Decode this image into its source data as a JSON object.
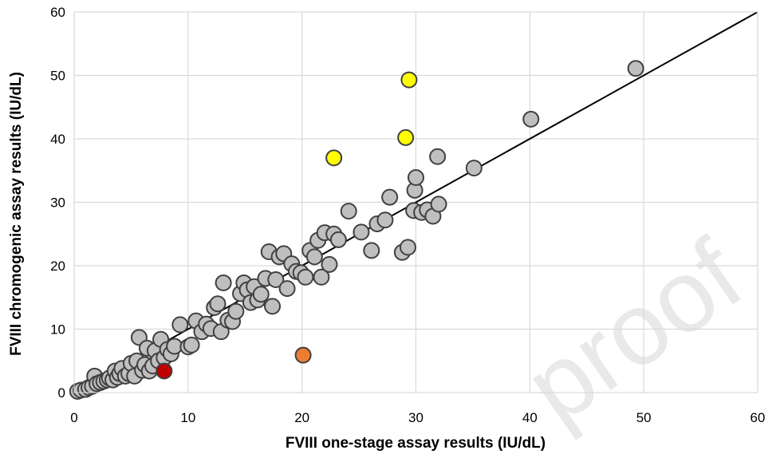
{
  "chart_data": {
    "type": "scatter",
    "title": "",
    "xlabel": "FVIII one-stage assay results (IU/dL)",
    "ylabel": "FVIII chromogenic assay results (IU/dL)",
    "xlim": [
      0,
      60
    ],
    "ylim": [
      0,
      60
    ],
    "x_ticks": [
      "0",
      "10",
      "20",
      "30",
      "40",
      "50",
      "60"
    ],
    "y_ticks": [
      "0",
      "10",
      "20",
      "30",
      "40",
      "50",
      "60"
    ],
    "grid": true,
    "legend": "none",
    "identity_line": {
      "from": [
        0,
        0
      ],
      "to": [
        60,
        60
      ],
      "color": "#000000"
    },
    "colors": {
      "gray": "#bfbfbf",
      "yellow": "#ffff00",
      "orange": "#ed7d31",
      "red": "#c00000",
      "marker_edge": "#404040",
      "grid": "#d9d9d9"
    },
    "series": [
      {
        "color": "gray",
        "points": [
          [
            0.3,
            0.2
          ],
          [
            0.6,
            0.4
          ],
          [
            1.0,
            0.5
          ],
          [
            1.3,
            0.8
          ],
          [
            1.6,
            1.0
          ],
          [
            1.8,
            2.6
          ],
          [
            2.0,
            1.4
          ],
          [
            2.3,
            1.6
          ],
          [
            2.6,
            1.8
          ],
          [
            2.9,
            2.0
          ],
          [
            3.1,
            2.3
          ],
          [
            3.4,
            2.0
          ],
          [
            3.6,
            3.4
          ],
          [
            3.8,
            2.4
          ],
          [
            4.0,
            3.0
          ],
          [
            4.2,
            3.8
          ],
          [
            4.5,
            2.6
          ],
          [
            4.8,
            3.0
          ],
          [
            5.0,
            4.6
          ],
          [
            5.3,
            2.6
          ],
          [
            5.5,
            5.0
          ],
          [
            5.7,
            8.7
          ],
          [
            6.0,
            3.5
          ],
          [
            6.2,
            4.4
          ],
          [
            6.4,
            7.0
          ],
          [
            6.6,
            3.4
          ],
          [
            6.9,
            4.2
          ],
          [
            7.1,
            6.6
          ],
          [
            7.4,
            5.0
          ],
          [
            7.6,
            8.4
          ],
          [
            7.9,
            5.5
          ],
          [
            8.2,
            6.8
          ],
          [
            8.5,
            6.1
          ],
          [
            8.8,
            7.3
          ],
          [
            9.3,
            10.7
          ],
          [
            10.0,
            7.2
          ],
          [
            10.3,
            7.5
          ],
          [
            10.7,
            11.3
          ],
          [
            11.2,
            9.6
          ],
          [
            11.6,
            10.8
          ],
          [
            12.0,
            10.1
          ],
          [
            12.3,
            13.4
          ],
          [
            12.6,
            14.0
          ],
          [
            12.9,
            9.6
          ],
          [
            13.1,
            17.3
          ],
          [
            13.5,
            11.4
          ],
          [
            13.9,
            11.2
          ],
          [
            14.2,
            12.8
          ],
          [
            14.6,
            15.6
          ],
          [
            14.9,
            17.3
          ],
          [
            15.2,
            16.2
          ],
          [
            15.5,
            14.2
          ],
          [
            15.8,
            16.7
          ],
          [
            16.1,
            14.6
          ],
          [
            16.4,
            15.5
          ],
          [
            16.8,
            18.0
          ],
          [
            17.1,
            22.2
          ],
          [
            17.4,
            13.6
          ],
          [
            17.7,
            17.8
          ],
          [
            18.0,
            21.4
          ],
          [
            18.4,
            21.9
          ],
          [
            18.7,
            16.4
          ],
          [
            19.1,
            20.3
          ],
          [
            19.5,
            19.1
          ],
          [
            19.9,
            18.9
          ],
          [
            20.3,
            18.2
          ],
          [
            20.7,
            22.4
          ],
          [
            21.1,
            21.4
          ],
          [
            21.4,
            24.0
          ],
          [
            21.7,
            18.2
          ],
          [
            22.0,
            25.2
          ],
          [
            22.4,
            20.2
          ],
          [
            22.8,
            25.0
          ],
          [
            23.2,
            24.1
          ],
          [
            24.1,
            28.6
          ],
          [
            25.2,
            25.3
          ],
          [
            26.1,
            22.4
          ],
          [
            26.6,
            26.6
          ],
          [
            27.3,
            27.2
          ],
          [
            27.7,
            30.8
          ],
          [
            28.8,
            22.1
          ],
          [
            29.3,
            22.9
          ],
          [
            29.8,
            28.7
          ],
          [
            29.9,
            31.9
          ],
          [
            30.0,
            33.9
          ],
          [
            30.5,
            28.4
          ],
          [
            31.0,
            28.8
          ],
          [
            31.5,
            27.8
          ],
          [
            31.9,
            37.2
          ],
          [
            32.0,
            29.7
          ],
          [
            35.1,
            35.4
          ],
          [
            40.1,
            43.1
          ],
          [
            49.3,
            51.1
          ]
        ]
      },
      {
        "color": "yellow",
        "points": [
          [
            22.8,
            37.0
          ],
          [
            29.1,
            40.2
          ],
          [
            29.4,
            49.3
          ]
        ]
      },
      {
        "color": "orange",
        "points": [
          [
            20.1,
            5.9
          ]
        ]
      },
      {
        "color": "red",
        "points": [
          [
            7.9,
            3.4
          ]
        ]
      }
    ]
  }
}
